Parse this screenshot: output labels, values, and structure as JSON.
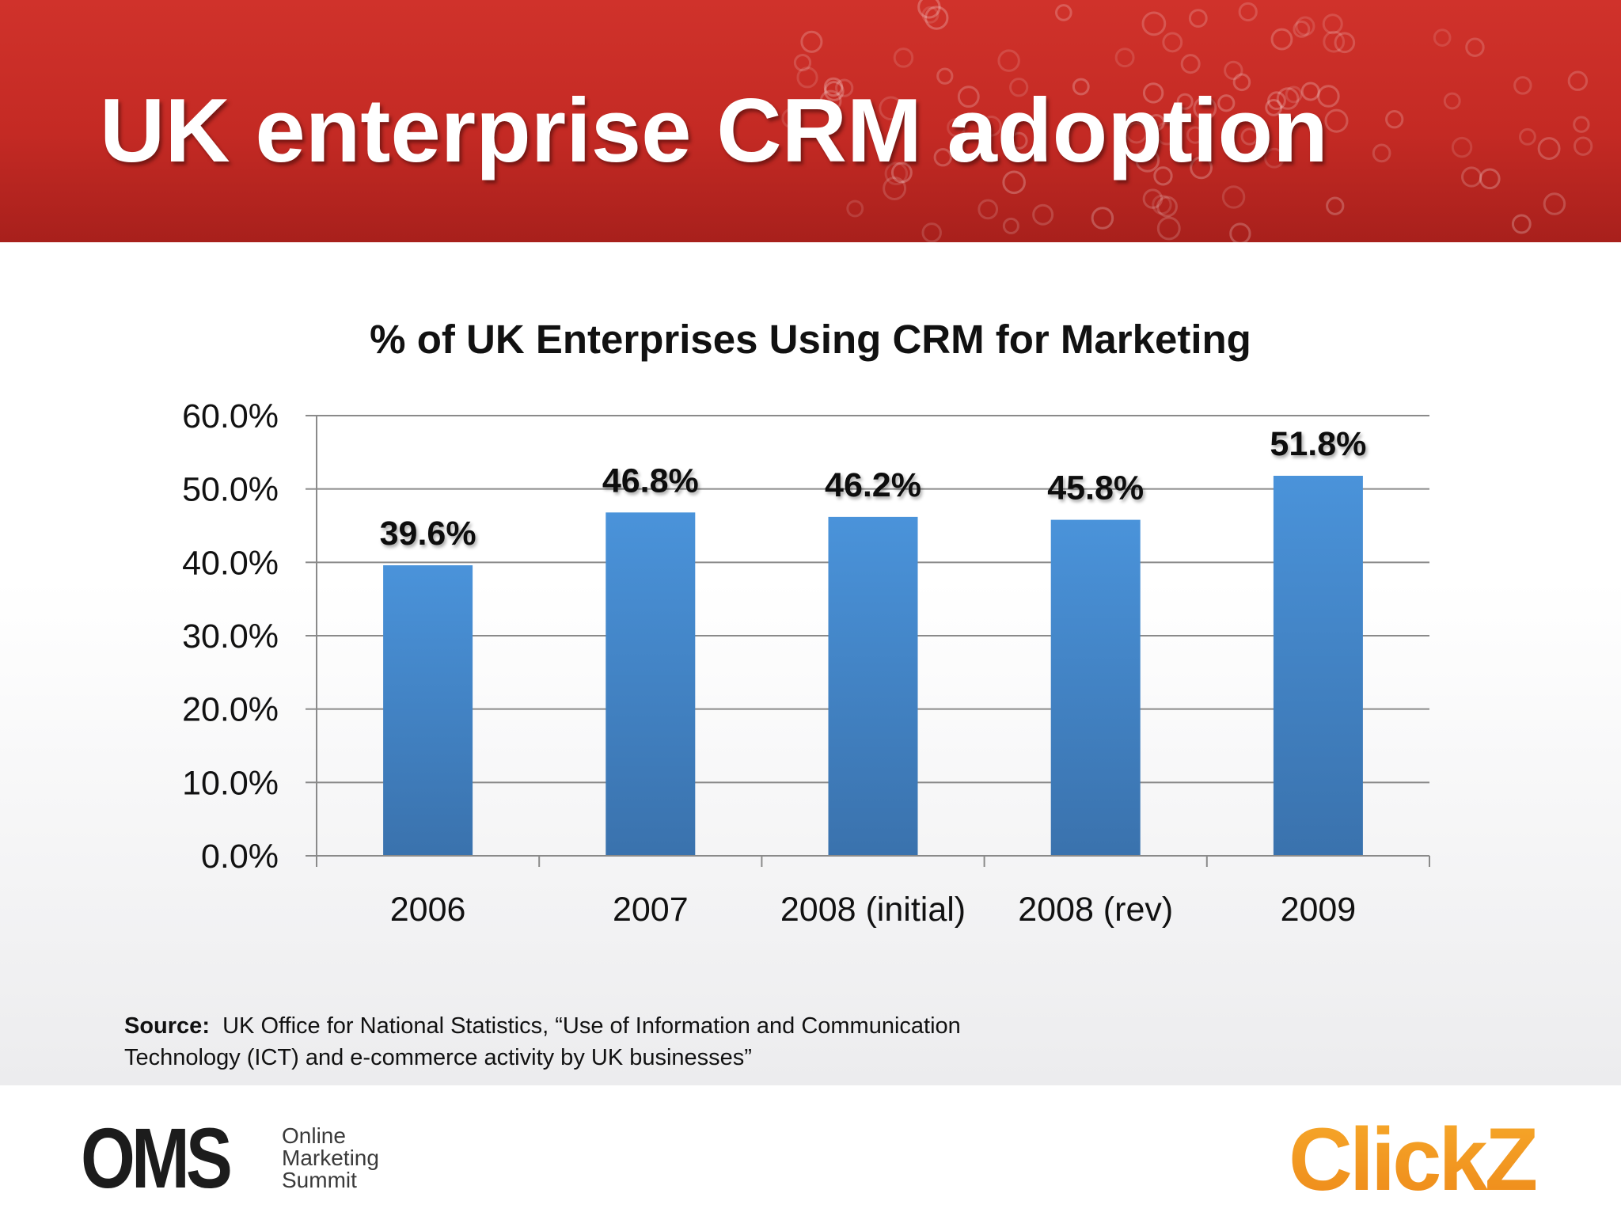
{
  "slide": {
    "title": "UK enterprise CRM adoption"
  },
  "chart_data": {
    "type": "bar",
    "title": "% of UK Enterprises Using CRM for Marketing",
    "xlabel": "",
    "ylabel": "",
    "categories": [
      "2006",
      "2007",
      "2008 (initial)",
      "2008 (rev)",
      "2009"
    ],
    "values": [
      39.6,
      46.8,
      46.2,
      45.8,
      51.8
    ],
    "data_labels": [
      "39.6%",
      "46.8%",
      "46.2%",
      "45.8%",
      "51.8%"
    ],
    "ylim": [
      0,
      60
    ],
    "yticks": [
      0,
      10,
      20,
      30,
      40,
      50,
      60
    ],
    "ytick_labels": [
      "0.0%",
      "10.0%",
      "20.0%",
      "30.0%",
      "40.0%",
      "50.0%",
      "60.0%"
    ],
    "grid": true,
    "legend": "none",
    "bar_color": "#4a8fd4"
  },
  "source": {
    "label": "Source:",
    "line1": "UK Office for National Statistics, “Use of Information and Communication",
    "line2": "Technology (ICT) and e-commerce activity by UK businesses”"
  },
  "footer": {
    "oms_logo": {
      "big": "OMS",
      "line1": "Online",
      "line2": "Marketing",
      "line3": "Summit"
    },
    "clickz_logo": "ClickZ"
  },
  "colors": {
    "header_red": "#c42a24",
    "title_text": "#ffffff",
    "clickz_orange": "#f29a1f"
  }
}
